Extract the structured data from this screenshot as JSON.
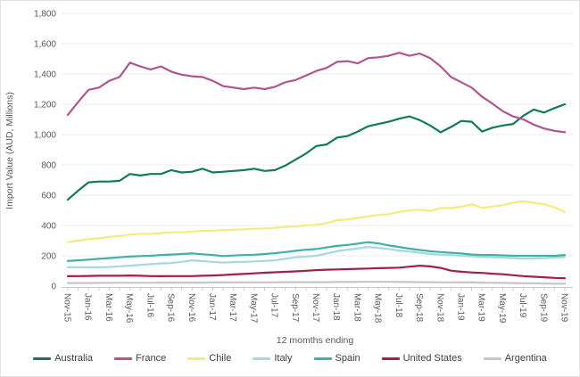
{
  "figure": {
    "y_axis_title": "Import Value (AUD, Millions)",
    "x_axis_title": "12 momths ending"
  },
  "chart_data": {
    "type": "line",
    "title": "",
    "xlabel": "12 momths ending",
    "ylabel": "Import Value (AUD, Millions)",
    "ylim": [
      0,
      1800
    ],
    "ytick_step": 200,
    "grid": "horizontal-only",
    "legend_position": "bottom",
    "y_tick_labels": [
      "0",
      "200",
      "400",
      "600",
      "800",
      "1,000",
      "1,200",
      "1,400",
      "1,600",
      "1,800"
    ],
    "x_label_every": 2,
    "x": [
      "Nov-15",
      "Dec-15",
      "Jan-16",
      "Feb-16",
      "Mar-16",
      "Apr-16",
      "May-16",
      "Jun-16",
      "Jul-16",
      "Aug-16",
      "Sep-16",
      "Oct-16",
      "Nov-16",
      "Dec-16",
      "Jan-17",
      "Feb-17",
      "Mar-17",
      "Apr-17",
      "May-17",
      "Jun-17",
      "Jul-17",
      "Aug-17",
      "Sep-17",
      "Oct-17",
      "Nov-17",
      "Dec-17",
      "Jan-18",
      "Feb-18",
      "Mar-18",
      "Apr-18",
      "May-18",
      "Jun-18",
      "Jul-18",
      "Aug-18",
      "Sep-18",
      "Oct-18",
      "Nov-18",
      "Dec-18",
      "Jan-19",
      "Feb-19",
      "Mar-19",
      "Apr-19",
      "May-19",
      "Jun-19",
      "Jul-19",
      "Aug-19",
      "Sep-19",
      "Oct-19",
      "Nov-19"
    ],
    "series": [
      {
        "name": "Australia",
        "color": "#117a57",
        "values": [
          570,
          630,
          685,
          690,
          690,
          695,
          740,
          730,
          740,
          740,
          765,
          750,
          755,
          775,
          750,
          755,
          760,
          765,
          775,
          760,
          765,
          795,
          835,
          875,
          925,
          935,
          980,
          990,
          1020,
          1055,
          1070,
          1085,
          1105,
          1120,
          1095,
          1060,
          1015,
          1050,
          1090,
          1085,
          1020,
          1045,
          1060,
          1070,
          1125,
          1165,
          1145,
          1175,
          1200
        ]
      },
      {
        "name": "France",
        "color": "#b0568e",
        "values": [
          1130,
          1215,
          1295,
          1310,
          1355,
          1380,
          1475,
          1450,
          1430,
          1450,
          1415,
          1395,
          1385,
          1380,
          1355,
          1320,
          1310,
          1300,
          1310,
          1300,
          1315,
          1345,
          1360,
          1390,
          1420,
          1440,
          1480,
          1485,
          1470,
          1505,
          1510,
          1520,
          1540,
          1520,
          1535,
          1505,
          1450,
          1380,
          1345,
          1310,
          1250,
          1205,
          1155,
          1120,
          1100,
          1065,
          1040,
          1025,
          1015
        ]
      },
      {
        "name": "Chile",
        "color": "#f0ed7e",
        "values": [
          290,
          300,
          310,
          315,
          325,
          330,
          340,
          345,
          345,
          350,
          355,
          355,
          360,
          365,
          365,
          370,
          372,
          375,
          378,
          380,
          385,
          390,
          395,
          400,
          405,
          415,
          435,
          440,
          450,
          460,
          470,
          475,
          490,
          500,
          505,
          495,
          515,
          515,
          525,
          540,
          515,
          525,
          535,
          550,
          560,
          550,
          540,
          520,
          490
        ]
      },
      {
        "name": "Italy",
        "color": "#a8d8db",
        "values": [
          125,
          125,
          125,
          125,
          126,
          130,
          135,
          140,
          145,
          150,
          152,
          160,
          170,
          165,
          160,
          155,
          158,
          160,
          163,
          166,
          170,
          180,
          190,
          195,
          200,
          215,
          230,
          240,
          248,
          258,
          252,
          245,
          235,
          228,
          220,
          212,
          208,
          205,
          200,
          196,
          192,
          190,
          188,
          185,
          182,
          183,
          185,
          188,
          192
        ]
      },
      {
        "name": "Spain",
        "color": "#3fb2a7",
        "values": [
          165,
          170,
          175,
          180,
          185,
          190,
          195,
          198,
          200,
          205,
          208,
          212,
          215,
          210,
          205,
          198,
          202,
          205,
          207,
          212,
          217,
          225,
          233,
          240,
          245,
          255,
          265,
          272,
          280,
          290,
          282,
          268,
          258,
          247,
          238,
          230,
          225,
          220,
          215,
          208,
          205,
          205,
          203,
          200,
          200,
          200,
          200,
          200,
          205
        ]
      },
      {
        "name": "United States",
        "color": "#a51e45",
        "values": [
          65,
          66,
          67,
          68,
          68,
          68,
          70,
          68,
          66,
          65,
          66,
          66,
          66,
          68,
          70,
          73,
          77,
          80,
          84,
          88,
          91,
          94,
          97,
          101,
          105,
          108,
          110,
          112,
          114,
          116,
          118,
          120,
          122,
          128,
          135,
          130,
          120,
          102,
          95,
          90,
          87,
          82,
          78,
          72,
          66,
          62,
          58,
          54,
          52
        ]
      },
      {
        "name": "Argentina",
        "color": "#c6c6c6",
        "values": [
          20,
          20,
          20,
          21,
          21,
          22,
          22,
          22,
          22,
          23,
          23,
          23,
          23,
          23,
          24,
          24,
          24,
          25,
          25,
          25,
          25,
          26,
          26,
          26,
          26,
          26,
          27,
          27,
          28,
          28,
          28,
          28,
          27,
          27,
          26,
          26,
          25,
          25,
          24,
          24,
          23,
          22,
          21,
          20,
          19,
          18,
          17,
          16,
          15
        ]
      }
    ]
  }
}
